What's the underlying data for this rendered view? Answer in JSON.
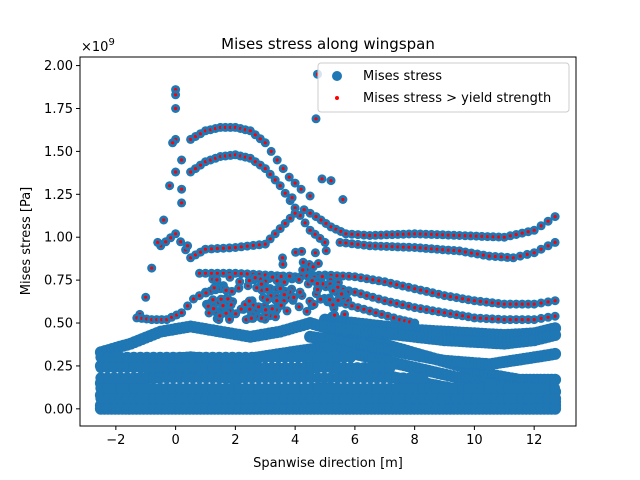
{
  "chart_data": {
    "type": "scatter",
    "title": "Mises stress along wingspan",
    "xlabel": "Spanwise direction [m]",
    "ylabel": "Mises stress [Pa]",
    "y_multiplier_label": "×10",
    "y_multiplier_exp": "9",
    "xlim": [
      -3.2,
      13.4
    ],
    "ylim": [
      -0.1,
      2.05
    ],
    "xticks": [
      -2,
      0,
      2,
      4,
      6,
      8,
      10,
      12
    ],
    "yticks": [
      0.0,
      0.25,
      0.5,
      0.75,
      1.0,
      1.25,
      1.5,
      1.75,
      2.0
    ],
    "ytick_labels": [
      "0.00",
      "0.25",
      "0.50",
      "0.75",
      "1.00",
      "1.25",
      "1.50",
      "1.75",
      "2.00"
    ],
    "yield_strength": 0.5,
    "legend_position": "upper right",
    "series": [
      {
        "name": "Mises stress",
        "color": "#1f77b4",
        "marker": "large-circle"
      },
      {
        "name": "Mises stress > yield strength",
        "color": "#ff0000",
        "marker": "small-dot"
      }
    ],
    "curves": [
      {
        "id": "upper-arch",
        "pts": [
          [
            0.2,
            1.45
          ],
          [
            0.5,
            1.57
          ],
          [
            1.0,
            1.62
          ],
          [
            1.5,
            1.64
          ],
          [
            2.0,
            1.64
          ],
          [
            2.5,
            1.62
          ],
          [
            3.0,
            1.55
          ],
          [
            3.4,
            1.45
          ],
          [
            3.8,
            1.35
          ],
          [
            4.2,
            1.28
          ],
          [
            4.5,
            1.24
          ]
        ]
      },
      {
        "id": "second-arch",
        "pts": [
          [
            0.2,
            1.28
          ],
          [
            0.5,
            1.38
          ],
          [
            1.0,
            1.44
          ],
          [
            1.5,
            1.47
          ],
          [
            2.0,
            1.48
          ],
          [
            2.5,
            1.46
          ],
          [
            3.0,
            1.4
          ],
          [
            3.5,
            1.3
          ],
          [
            4.0,
            1.17
          ],
          [
            4.5,
            1.04
          ],
          [
            5.0,
            0.97
          ]
        ]
      },
      {
        "id": "mid-hump",
        "pts": [
          [
            -0.5,
            0.95
          ],
          [
            0,
            1.02
          ],
          [
            0.5,
            0.88
          ],
          [
            1.0,
            0.93
          ],
          [
            2.0,
            0.94
          ],
          [
            3.0,
            0.96
          ],
          [
            3.5,
            1.05
          ],
          [
            4.0,
            1.14
          ],
          [
            4.3,
            1.16
          ],
          [
            4.7,
            1.12
          ],
          [
            5.2,
            1.06
          ],
          [
            5.7,
            1.02
          ],
          [
            6.5,
            1.01
          ],
          [
            8.0,
            1.02
          ],
          [
            9.5,
            1.01
          ],
          [
            11.0,
            1.0
          ],
          [
            12.0,
            1.04
          ],
          [
            12.7,
            1.12
          ]
        ]
      },
      {
        "id": "lower-band",
        "pts": [
          [
            5.5,
            0.97
          ],
          [
            6.5,
            0.95
          ],
          [
            8.0,
            0.94
          ],
          [
            9.5,
            0.92
          ],
          [
            10.5,
            0.89
          ],
          [
            11.3,
            0.88
          ],
          [
            12.0,
            0.91
          ],
          [
            12.7,
            0.97
          ]
        ]
      },
      {
        "id": "band-075",
        "pts": [
          [
            0.8,
            0.79
          ],
          [
            2.0,
            0.79
          ],
          [
            3.0,
            0.78
          ],
          [
            4.0,
            0.77
          ],
          [
            5.0,
            0.78
          ],
          [
            6.0,
            0.77
          ],
          [
            7.0,
            0.74
          ],
          [
            8.0,
            0.7
          ],
          [
            9.0,
            0.66
          ],
          [
            10.0,
            0.63
          ],
          [
            11.0,
            0.61
          ],
          [
            12.0,
            0.61
          ],
          [
            12.7,
            0.63
          ]
        ]
      },
      {
        "id": "band-065",
        "pts": [
          [
            5.0,
            0.72
          ],
          [
            6.0,
            0.68
          ],
          [
            7.0,
            0.63
          ],
          [
            8.0,
            0.59
          ],
          [
            9.0,
            0.56
          ],
          [
            10.0,
            0.53
          ],
          [
            11.0,
            0.52
          ],
          [
            12.0,
            0.52
          ],
          [
            12.7,
            0.54
          ]
        ]
      },
      {
        "id": "band-055",
        "pts": [
          [
            5.5,
            0.62
          ],
          [
            6.5,
            0.57
          ],
          [
            7.5,
            0.52
          ],
          [
            8.0,
            0.5
          ]
        ]
      },
      {
        "id": "spike-left",
        "pts": [
          [
            -1.2,
            0.55
          ],
          [
            -1.0,
            0.65
          ],
          [
            -0.8,
            0.82
          ],
          [
            -0.6,
            0.97
          ],
          [
            -0.4,
            1.1
          ],
          [
            -0.2,
            1.3
          ],
          [
            0.0,
            1.38
          ],
          [
            0.2,
            1.2
          ],
          [
            0.4,
            0.95
          ]
        ]
      },
      {
        "id": "low-left",
        "pts": [
          [
            -1.3,
            0.53
          ],
          [
            -0.8,
            0.52
          ],
          [
            -0.3,
            0.52
          ],
          [
            0.2,
            0.56
          ],
          [
            0.6,
            0.64
          ],
          [
            1.0,
            0.68
          ],
          [
            1.5,
            0.7
          ]
        ]
      }
    ],
    "blue_bands": [
      {
        "pts": [
          [
            -2.5,
            0.33
          ],
          [
            -1.5,
            0.38
          ],
          [
            -0.5,
            0.45
          ],
          [
            0.5,
            0.48
          ],
          [
            1.5,
            0.45
          ],
          [
            2.5,
            0.42
          ],
          [
            3.5,
            0.45
          ],
          [
            4.5,
            0.5
          ],
          [
            5.5,
            0.45
          ],
          [
            6.5,
            0.4
          ],
          [
            7.5,
            0.35
          ],
          [
            8.5,
            0.3
          ],
          [
            9.5,
            0.25
          ],
          [
            10.5,
            0.2
          ],
          [
            11.5,
            0.17
          ],
          [
            12.7,
            0.17
          ]
        ]
      },
      {
        "pts": [
          [
            5.0,
            0.52
          ],
          [
            6.0,
            0.5
          ],
          [
            7.0,
            0.48
          ],
          [
            8.0,
            0.46
          ],
          [
            9.0,
            0.45
          ],
          [
            10.0,
            0.44
          ],
          [
            11.0,
            0.43
          ],
          [
            12.0,
            0.44
          ],
          [
            12.7,
            0.47
          ]
        ]
      },
      {
        "pts": [
          [
            5.0,
            0.48
          ],
          [
            6.0,
            0.46
          ],
          [
            7.0,
            0.44
          ],
          [
            8.0,
            0.42
          ],
          [
            9.0,
            0.4
          ],
          [
            10.0,
            0.39
          ],
          [
            11.0,
            0.38
          ],
          [
            12.0,
            0.4
          ],
          [
            12.7,
            0.43
          ]
        ]
      },
      {
        "pts": [
          [
            4.5,
            0.42
          ],
          [
            6.0,
            0.38
          ],
          [
            7.5,
            0.33
          ],
          [
            9.0,
            0.28
          ],
          [
            10.5,
            0.26
          ],
          [
            12.0,
            0.3
          ],
          [
            12.7,
            0.32
          ]
        ]
      },
      {
        "pts": [
          [
            -2.5,
            0.25
          ],
          [
            -1.0,
            0.28
          ],
          [
            0.5,
            0.3
          ],
          [
            2.0,
            0.28
          ],
          [
            3.5,
            0.32
          ],
          [
            5.0,
            0.36
          ],
          [
            6.5,
            0.3
          ],
          [
            8.0,
            0.24
          ],
          [
            9.5,
            0.18
          ],
          [
            11.0,
            0.13
          ],
          [
            12.7,
            0.1
          ]
        ]
      },
      {
        "pts": [
          [
            -2.5,
            0.15
          ],
          [
            -1.0,
            0.18
          ],
          [
            0.5,
            0.2
          ],
          [
            2.0,
            0.18
          ],
          [
            3.5,
            0.22
          ],
          [
            5.0,
            0.25
          ],
          [
            6.5,
            0.21
          ],
          [
            8.0,
            0.16
          ],
          [
            9.5,
            0.11
          ],
          [
            11.0,
            0.08
          ],
          [
            12.7,
            0.06
          ]
        ]
      },
      {
        "pts": [
          [
            -2.5,
            0.08
          ],
          [
            0.0,
            0.1
          ],
          [
            2.5,
            0.09
          ],
          [
            5.0,
            0.12
          ],
          [
            7.5,
            0.09
          ],
          [
            10.0,
            0.06
          ],
          [
            12.7,
            0.04
          ]
        ]
      },
      {
        "pts": [
          [
            -2.5,
            0.02
          ],
          [
            0.0,
            0.03
          ],
          [
            2.5,
            0.03
          ],
          [
            5.0,
            0.04
          ],
          [
            7.5,
            0.03
          ],
          [
            10.0,
            0.02
          ],
          [
            12.7,
            0.02
          ]
        ]
      },
      {
        "pts": [
          [
            -2.5,
            0.0
          ],
          [
            2.5,
            0.0
          ],
          [
            7.5,
            0.0
          ],
          [
            12.7,
            0.0
          ]
        ]
      }
    ],
    "outliers": [
      [
        0.0,
        1.86
      ],
      [
        0.0,
        1.83
      ],
      [
        0.0,
        1.75
      ],
      [
        4.75,
        1.95
      ],
      [
        4.7,
        1.69
      ],
      [
        0.0,
        1.57
      ],
      [
        -0.1,
        1.55
      ],
      [
        4.9,
        1.34
      ],
      [
        5.2,
        1.33
      ],
      [
        3.9,
        1.23
      ],
      [
        5.6,
        1.22
      ]
    ]
  }
}
